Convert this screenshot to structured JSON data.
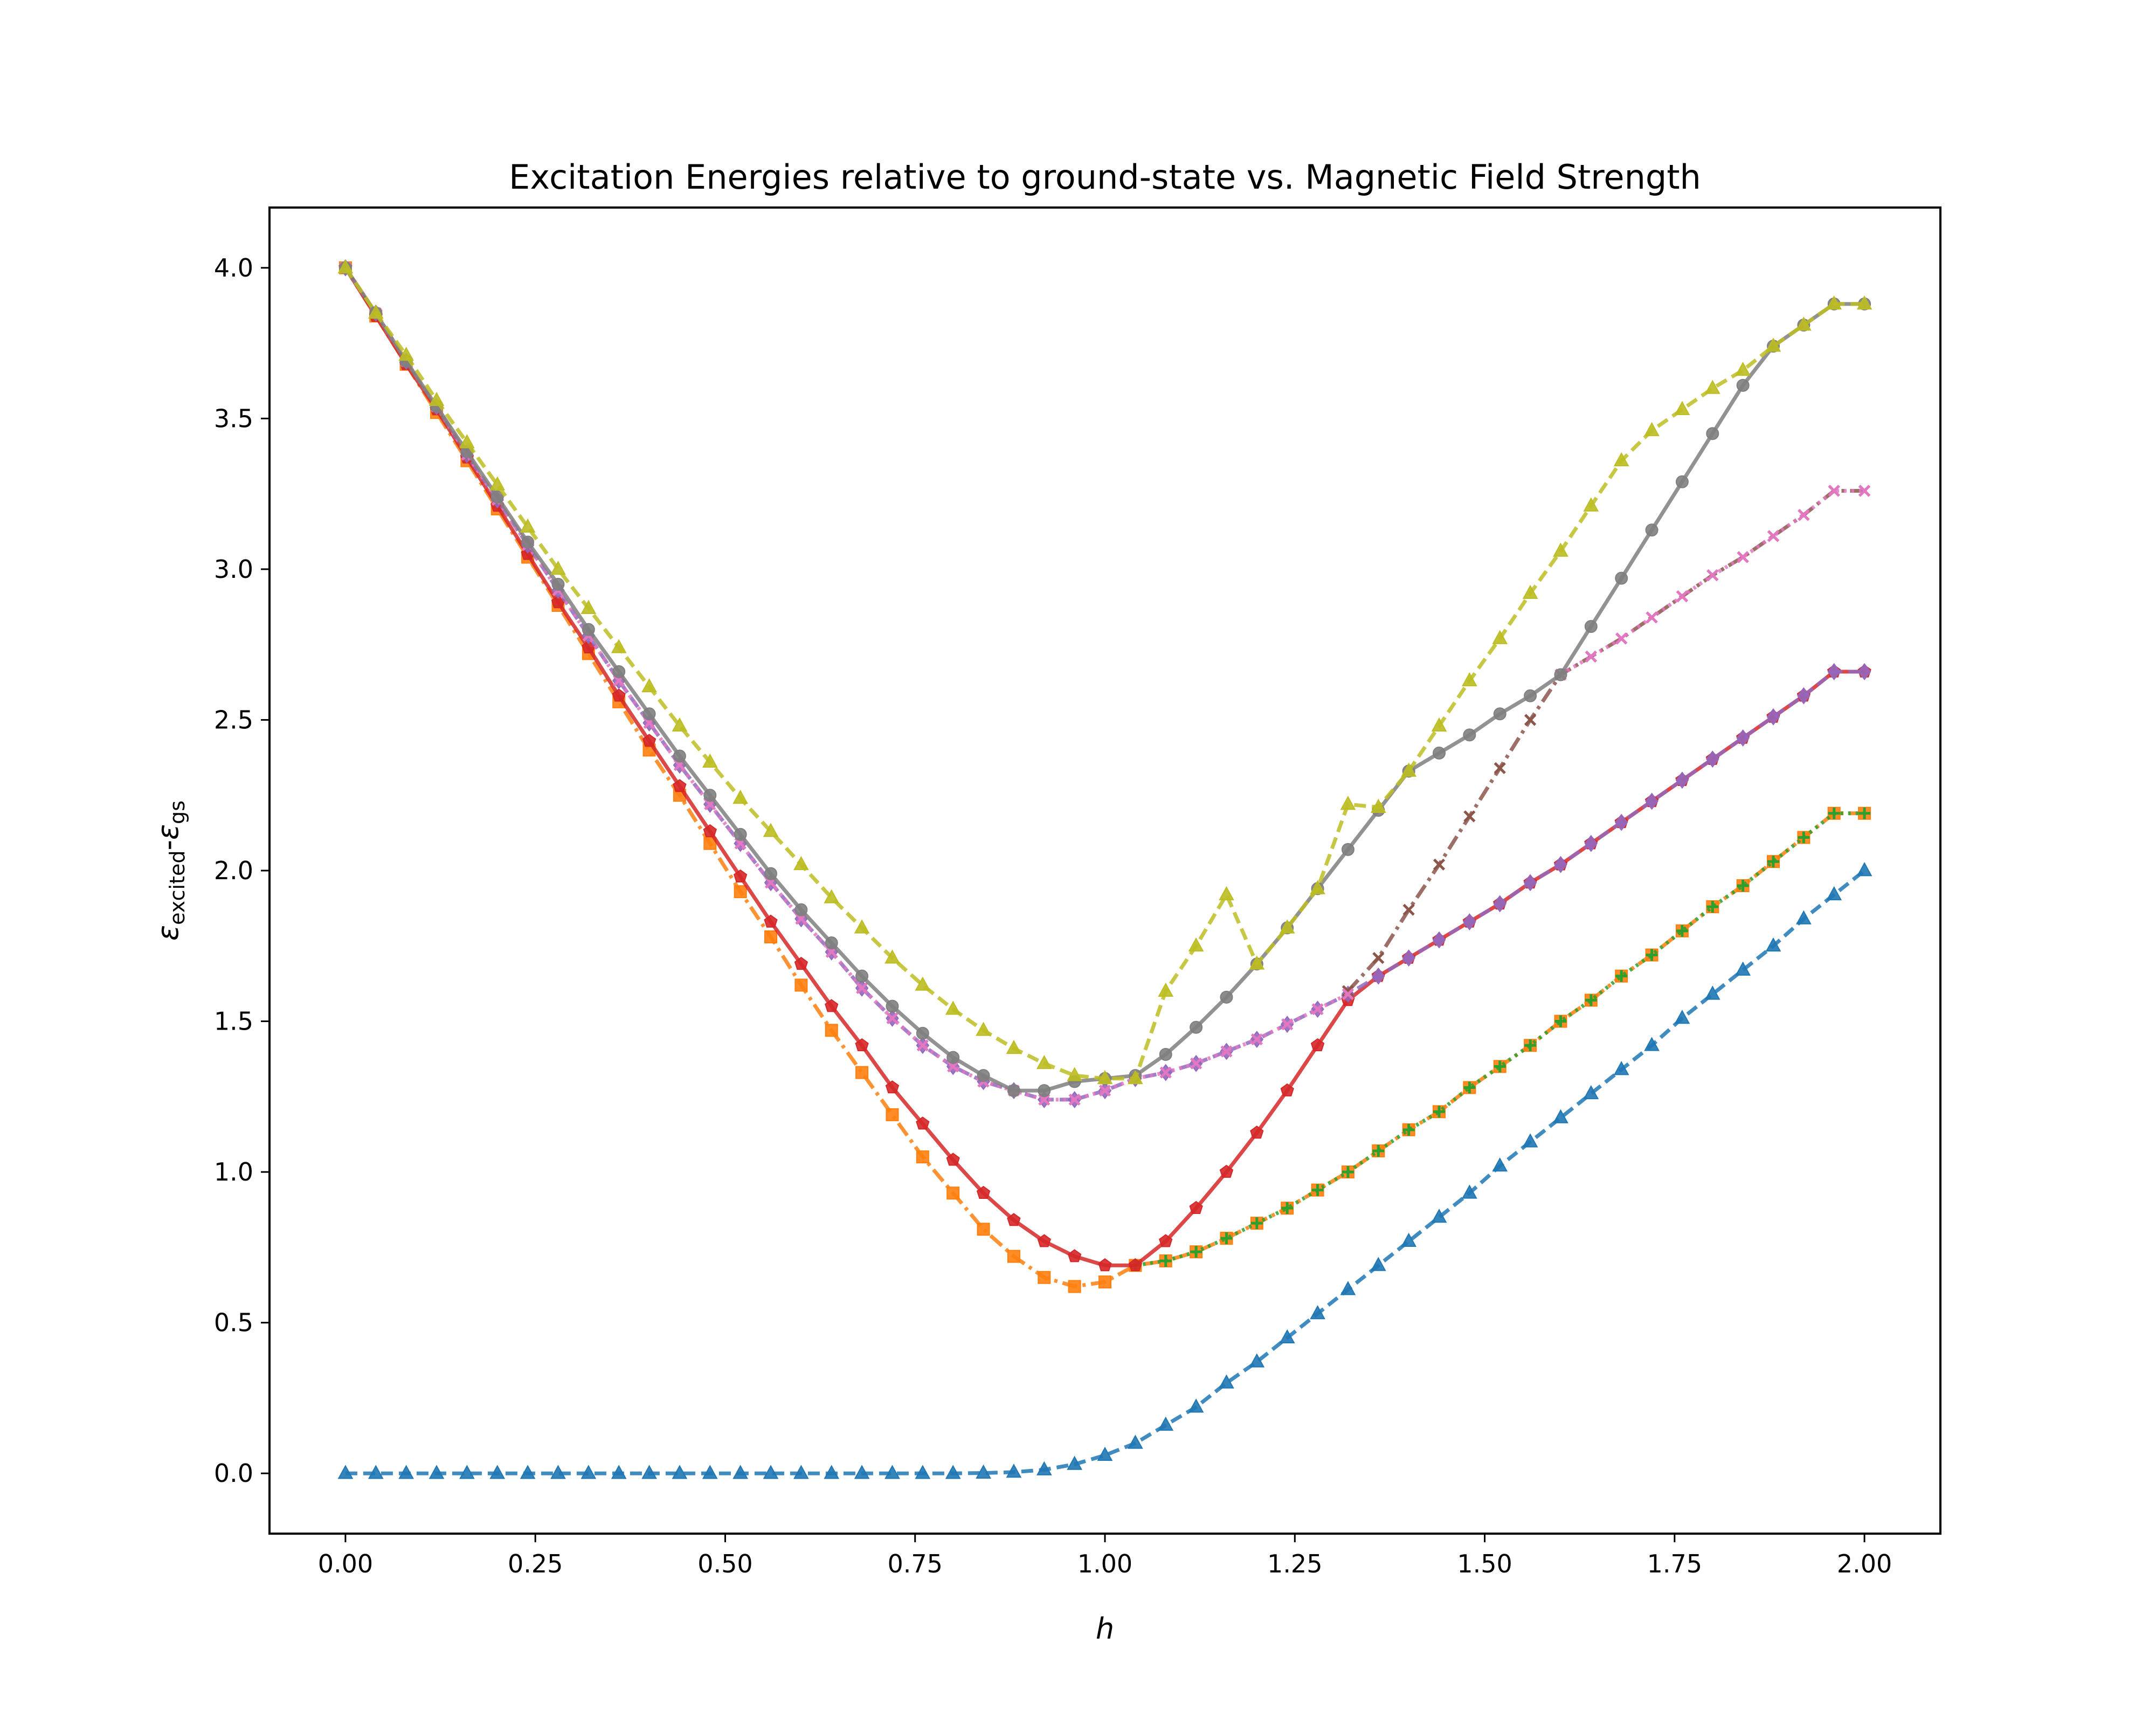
{
  "chart_data": {
    "type": "line",
    "title": "Excitation Energies relative to ground-state vs. Magnetic Field Strength",
    "xlabel": "h",
    "ylabel": {
      "eps1": "ε",
      "sub1": "excited",
      "dash": "-",
      "eps2": "ε",
      "sub2": "gs"
    },
    "xlim": [
      -0.1,
      2.1
    ],
    "ylim": [
      -0.2,
      4.2
    ],
    "xticks": [
      0.0,
      0.25,
      0.5,
      0.75,
      1.0,
      1.25,
      1.5,
      1.75,
      2.0
    ],
    "xtick_labels": [
      "0.00",
      "0.25",
      "0.50",
      "0.75",
      "1.00",
      "1.25",
      "1.50",
      "1.75",
      "2.00"
    ],
    "yticks": [
      0.0,
      0.5,
      1.0,
      1.5,
      2.0,
      2.5,
      3.0,
      3.5,
      4.0
    ],
    "ytick_labels": [
      "0.0",
      "0.5",
      "1.0",
      "1.5",
      "2.0",
      "2.5",
      "3.0",
      "3.5",
      "4.0"
    ],
    "grid": false,
    "x": [
      0.0,
      0.04,
      0.08,
      0.12,
      0.16,
      0.2,
      0.24,
      0.28,
      0.32,
      0.36,
      0.4,
      0.44,
      0.48,
      0.52,
      0.56,
      0.6,
      0.64,
      0.68,
      0.72,
      0.76,
      0.8,
      0.84,
      0.88,
      0.92,
      0.96,
      1.0,
      1.04,
      1.08,
      1.12,
      1.16,
      1.2,
      1.24,
      1.28,
      1.32,
      1.36,
      1.4,
      1.44,
      1.48,
      1.52,
      1.56,
      1.6,
      1.64,
      1.68,
      1.72,
      1.76,
      1.8,
      1.84,
      1.88,
      1.92,
      1.96,
      2.0
    ],
    "series": [
      {
        "color": "#1f77b4",
        "linestyle": "dashed",
        "marker": "triangle",
        "values": [
          0,
          0,
          0,
          0,
          0,
          0,
          0,
          0,
          0,
          0,
          0,
          0,
          0,
          0,
          0,
          0,
          0,
          0,
          0,
          0,
          0,
          0.001,
          0.004,
          0.012,
          0.03,
          0.06,
          0.1,
          0.16,
          0.22,
          0.3,
          0.37,
          0.45,
          0.53,
          0.61,
          0.69,
          0.77,
          0.85,
          0.93,
          1.02,
          1.1,
          1.18,
          1.26,
          1.34,
          1.42,
          1.51,
          1.59,
          1.67,
          1.75,
          1.84,
          1.92,
          2.0
        ]
      },
      {
        "color": "#ff7f0e",
        "linestyle": "dashdot",
        "marker": "square",
        "values": [
          4.0,
          3.84,
          3.68,
          3.52,
          3.36,
          3.2,
          3.04,
          2.88,
          2.72,
          2.56,
          2.4,
          2.25,
          2.09,
          1.93,
          1.78,
          1.62,
          1.47,
          1.33,
          1.19,
          1.05,
          0.93,
          0.81,
          0.72,
          0.65,
          0.62,
          0.635,
          0.69,
          0.705,
          0.735,
          0.78,
          0.83,
          0.88,
          0.94,
          1.0,
          1.07,
          1.14,
          1.2,
          1.28,
          1.35,
          1.42,
          1.5,
          1.57,
          1.65,
          1.72,
          1.8,
          1.88,
          1.95,
          2.03,
          2.11,
          2.19,
          2.19
        ]
      },
      {
        "color": "#2ca02c",
        "linestyle": "dotted",
        "marker": "plus",
        "values": [
          null,
          null,
          null,
          null,
          null,
          null,
          null,
          null,
          null,
          null,
          null,
          null,
          null,
          null,
          null,
          null,
          null,
          null,
          null,
          null,
          null,
          null,
          null,
          null,
          null,
          null,
          0.69,
          0.705,
          0.735,
          0.78,
          0.83,
          0.88,
          0.94,
          1.0,
          1.07,
          1.14,
          1.2,
          1.28,
          1.35,
          1.42,
          1.5,
          1.57,
          1.65,
          1.72,
          1.8,
          1.88,
          1.95,
          2.03,
          2.11,
          2.19,
          2.19
        ]
      },
      {
        "color": "#d62728",
        "linestyle": "solid",
        "marker": "pentagon",
        "values": [
          4.0,
          3.84,
          3.68,
          3.53,
          3.37,
          3.21,
          3.05,
          2.89,
          2.74,
          2.58,
          2.43,
          2.28,
          2.13,
          1.98,
          1.83,
          1.69,
          1.55,
          1.42,
          1.28,
          1.16,
          1.04,
          0.93,
          0.84,
          0.77,
          0.72,
          0.69,
          0.69,
          0.77,
          0.88,
          1.0,
          1.13,
          1.27,
          1.42,
          1.57,
          1.65,
          1.71,
          1.77,
          1.83,
          1.89,
          1.96,
          2.02,
          2.09,
          2.16,
          2.23,
          2.3,
          2.37,
          2.44,
          2.51,
          2.58,
          2.66,
          2.66
        ]
      },
      {
        "color": "#9467bd",
        "linestyle": "dashed",
        "marker": "diamond",
        "values": [
          4.0,
          3.85,
          3.69,
          3.54,
          3.38,
          3.23,
          3.08,
          2.93,
          2.78,
          2.63,
          2.49,
          2.35,
          2.22,
          2.09,
          1.96,
          1.84,
          1.73,
          1.61,
          1.51,
          1.42,
          1.35,
          1.3,
          1.27,
          1.24,
          1.24,
          1.27,
          1.31,
          1.33,
          1.36,
          1.4,
          1.44,
          1.49,
          1.54,
          1.59,
          1.65,
          1.71,
          1.77,
          1.83,
          1.89,
          1.96,
          2.02,
          2.09,
          2.16,
          2.23,
          2.3,
          2.37,
          2.44,
          2.51,
          2.58,
          2.66,
          2.66
        ]
      },
      {
        "color": "#8c564b",
        "linestyle": "dashdot",
        "marker": "x",
        "values": [
          null,
          null,
          null,
          null,
          null,
          null,
          null,
          null,
          null,
          null,
          null,
          null,
          null,
          null,
          null,
          null,
          null,
          null,
          null,
          null,
          null,
          null,
          null,
          null,
          null,
          null,
          null,
          null,
          null,
          null,
          null,
          null,
          null,
          1.6,
          1.71,
          1.87,
          2.02,
          2.18,
          2.34,
          2.5,
          2.65,
          2.71,
          2.77,
          2.84,
          2.91,
          2.98,
          3.04,
          3.11,
          3.18,
          3.26,
          3.26
        ]
      },
      {
        "color": "#e377c2",
        "linestyle": "dotted",
        "marker": "x",
        "values": [
          4.0,
          3.85,
          3.69,
          3.54,
          3.38,
          3.23,
          3.08,
          2.93,
          2.78,
          2.63,
          2.49,
          2.35,
          2.22,
          2.09,
          1.96,
          1.84,
          1.73,
          1.61,
          1.51,
          1.42,
          1.35,
          1.3,
          1.27,
          1.24,
          1.24,
          1.27,
          1.31,
          1.33,
          1.36,
          1.4,
          1.44,
          1.49,
          1.54,
          1.59,
          null,
          null,
          null,
          null,
          null,
          null,
          2.65,
          2.71,
          2.77,
          2.84,
          2.91,
          2.98,
          3.04,
          3.11,
          3.18,
          3.26,
          3.26
        ]
      },
      {
        "color": "#7f7f7f",
        "linestyle": "solid",
        "marker": "circle",
        "values": [
          4.0,
          3.85,
          3.69,
          3.54,
          3.39,
          3.24,
          3.09,
          2.95,
          2.8,
          2.66,
          2.52,
          2.38,
          2.25,
          2.12,
          1.99,
          1.87,
          1.76,
          1.65,
          1.55,
          1.46,
          1.38,
          1.32,
          1.27,
          1.27,
          1.3,
          1.31,
          1.32,
          1.39,
          1.48,
          1.58,
          1.69,
          1.81,
          1.94,
          2.07,
          2.2,
          2.33,
          2.39,
          2.45,
          2.52,
          2.58,
          2.65,
          2.81,
          2.97,
          3.13,
          3.29,
          3.45,
          3.61,
          3.74,
          3.81,
          3.88,
          3.88
        ]
      },
      {
        "color": "#bcbd22",
        "linestyle": "dashed",
        "marker": "triangle",
        "values": [
          4.0,
          3.85,
          3.71,
          3.56,
          3.42,
          3.28,
          3.14,
          3.0,
          2.87,
          2.74,
          2.61,
          2.48,
          2.36,
          2.24,
          2.13,
          2.02,
          1.91,
          1.81,
          1.71,
          1.62,
          1.54,
          1.47,
          1.41,
          1.36,
          1.32,
          1.31,
          1.31,
          1.6,
          1.75,
          1.92,
          1.69,
          1.81,
          1.94,
          2.22,
          2.21,
          2.33,
          2.48,
          2.63,
          2.77,
          2.92,
          3.06,
          3.21,
          3.36,
          3.46,
          3.53,
          3.6,
          3.66,
          3.74,
          3.81,
          3.88,
          3.88
        ]
      }
    ]
  }
}
